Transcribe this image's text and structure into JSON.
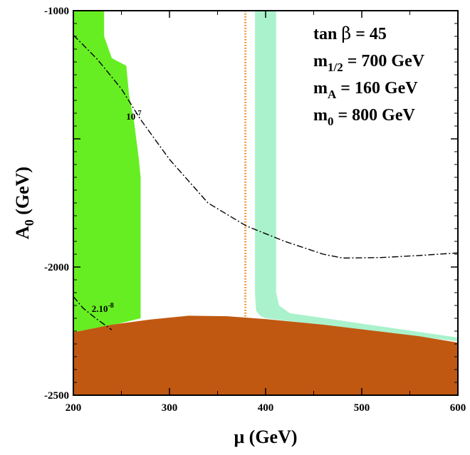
{
  "chart_data": {
    "type": "region-plot",
    "title": "",
    "xlabel": {
      "main": "μ (GeV)"
    },
    "ylabel": {
      "base": "A",
      "sub": "0",
      "unit": " (GeV)"
    },
    "xlim": [
      200,
      600
    ],
    "ylim": [
      -2500,
      -1000
    ],
    "x_ticks": [
      200,
      300,
      400,
      500,
      600
    ],
    "x_tick_labels": [
      "200",
      "300",
      "400",
      "500",
      "600"
    ],
    "y_ticks": [
      -1000,
      -2000,
      -2500
    ],
    "y_tick_labels": [
      "-1000",
      "-2000",
      "-2500"
    ],
    "annotations": [
      {
        "name": "tan-beta",
        "parts": [
          {
            "t": "tan "
          },
          {
            "t": "β",
            "sym": true
          },
          {
            "t": " = 45"
          }
        ]
      },
      {
        "name": "m-half",
        "parts": [
          {
            "t": "m"
          },
          {
            "t": "1/2",
            "sub": true
          },
          {
            "t": " = 700 GeV"
          }
        ]
      },
      {
        "name": "m-a",
        "parts": [
          {
            "t": "m"
          },
          {
            "t": "A",
            "sub": true
          },
          {
            "t": " = 160 GeV"
          }
        ]
      },
      {
        "name": "m-zero",
        "parts": [
          {
            "t": "m"
          },
          {
            "t": "0",
            "sub": true
          },
          {
            "t": " = 800 GeV"
          }
        ]
      }
    ],
    "regions": [
      {
        "name": "green-region",
        "color": "#66ee22",
        "points": [
          [
            200,
            -1000
          ],
          [
            232,
            -1000
          ],
          [
            232,
            -1100
          ],
          [
            240,
            -1185
          ],
          [
            255,
            -1215
          ],
          [
            258,
            -1330
          ],
          [
            263,
            -1430
          ],
          [
            268,
            -1575
          ],
          [
            270,
            -1650
          ],
          [
            270,
            -2200
          ],
          [
            248,
            -2220
          ],
          [
            220,
            -2240
          ],
          [
            200,
            -2255
          ]
        ]
      },
      {
        "name": "light-green-band",
        "color": "#aaf2cc",
        "points": [
          [
            389,
            -1000
          ],
          [
            411,
            -1000
          ],
          [
            411,
            -2100
          ],
          [
            414,
            -2150
          ],
          [
            425,
            -2180
          ],
          [
            600,
            -2275
          ],
          [
            600,
            -2290
          ],
          [
            400,
            -2200
          ],
          [
            394,
            -2190
          ],
          [
            390,
            -2170
          ],
          [
            389,
            -2100
          ]
        ]
      },
      {
        "name": "brown-region",
        "color": "#c05812",
        "points": [
          [
            200,
            -2255
          ],
          [
            240,
            -2225
          ],
          [
            280,
            -2205
          ],
          [
            320,
            -2190
          ],
          [
            360,
            -2192
          ],
          [
            400,
            -2203
          ],
          [
            460,
            -2225
          ],
          [
            520,
            -2252
          ],
          [
            560,
            -2270
          ],
          [
            600,
            -2295
          ],
          [
            600,
            -2500
          ],
          [
            200,
            -2500
          ]
        ]
      }
    ],
    "lines": [
      {
        "name": "mu-vertical-line",
        "style": "dotted",
        "color": "#ee8811",
        "points": [
          [
            379,
            -1000
          ],
          [
            379,
            -2200
          ]
        ]
      },
      {
        "name": "contour-1e-7",
        "style": "dashdot",
        "color": "#000000",
        "label": "10",
        "label_sup": "-7",
        "label_at": [
          255,
          -1425
        ],
        "points": [
          [
            200,
            -1095
          ],
          [
            225,
            -1190
          ],
          [
            250,
            -1305
          ],
          [
            270,
            -1425
          ],
          [
            300,
            -1580
          ],
          [
            340,
            -1750
          ],
          [
            380,
            -1840
          ],
          [
            420,
            -1900
          ],
          [
            460,
            -1950
          ],
          [
            480,
            -1965
          ],
          [
            520,
            -1963
          ],
          [
            560,
            -1955
          ],
          [
            600,
            -1945
          ]
        ]
      },
      {
        "name": "contour-2e-8",
        "style": "dashdot",
        "color": "#000000",
        "label": "2.10",
        "label_sup": "-8",
        "label_at": [
          219,
          -2175
        ],
        "points": [
          [
            200,
            -2115
          ],
          [
            210,
            -2160
          ],
          [
            225,
            -2205
          ],
          [
            240,
            -2245
          ]
        ]
      }
    ]
  }
}
